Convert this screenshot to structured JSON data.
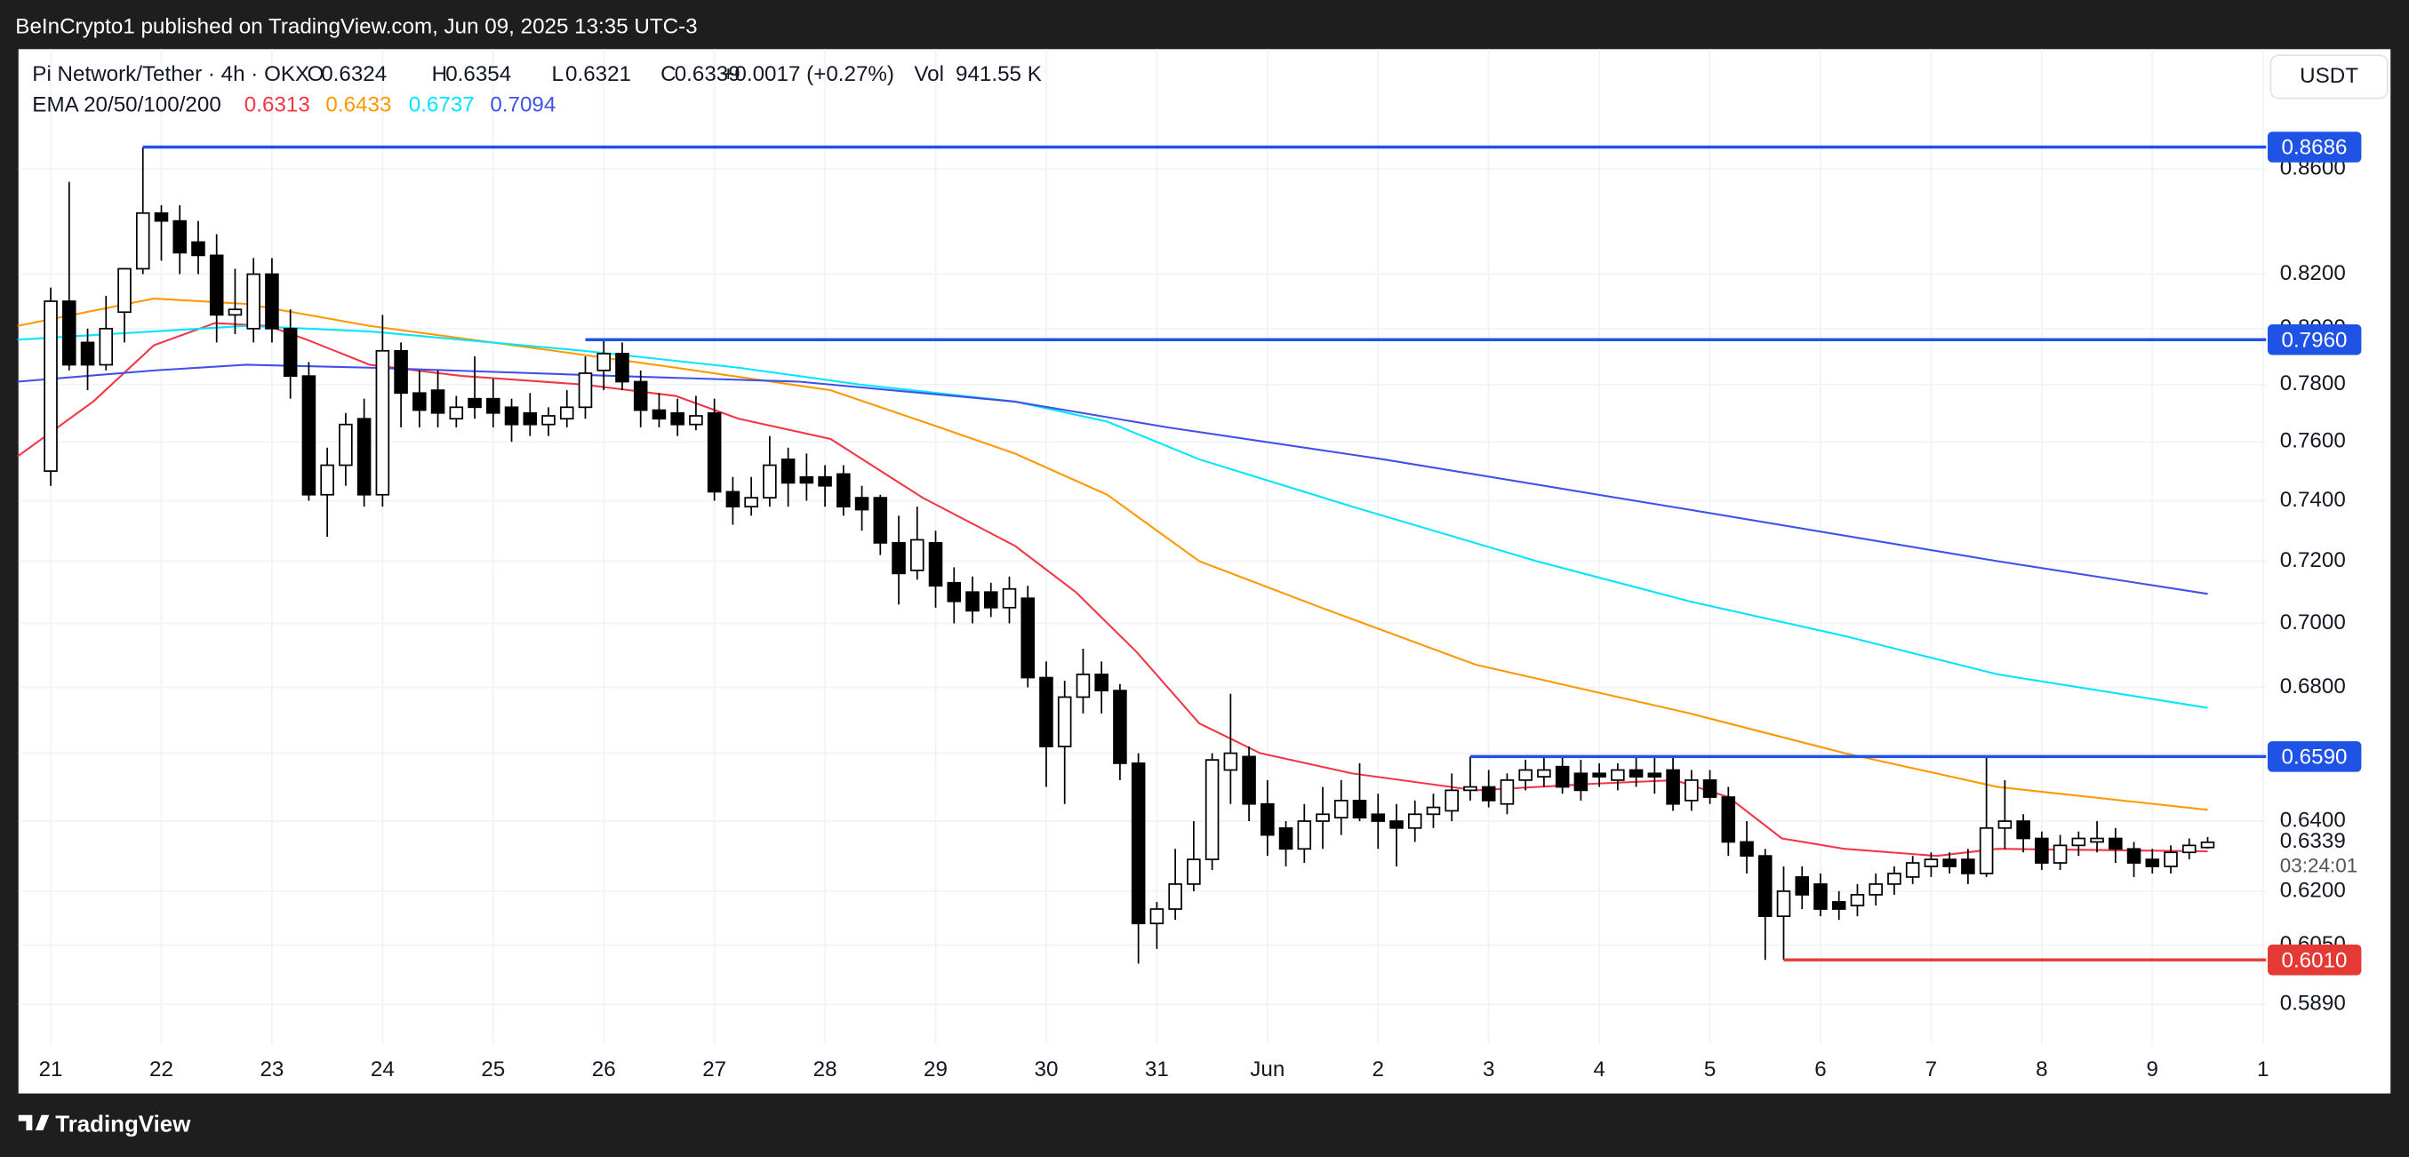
{
  "header": {
    "published": "BeInCrypto1 published on TradingView.com, Jun 09, 2025 13:35 UTC-3",
    "symbol": "Pi Network/Tether · 4h · OKX",
    "ohlc": [
      {
        "key": "O",
        "value": "0.6324"
      },
      {
        "key": "H",
        "value": "0.6354"
      },
      {
        "key": "L",
        "value": "0.6321"
      },
      {
        "key": "C",
        "value": "0.6339"
      }
    ],
    "change": "+0.0017 (+0.27%)",
    "volume": {
      "key": "Vol",
      "value": "941.55 K"
    },
    "ema_legend": "EMA 20/50/100/200",
    "currency": "USDT"
  },
  "footer": {
    "brand": "TradingView"
  },
  "chart_data": {
    "type": "candlestick",
    "log_scale": true,
    "grid": true,
    "up_color": "#ffffff",
    "down_color": "#000000",
    "wick_color": "#000000",
    "xlim": [
      -1.75,
      120.17
    ],
    "ylim": [
      0.5657,
      0.908
    ],
    "xticks": [
      {
        "value": 0,
        "label": "21"
      },
      {
        "value": 6,
        "label": "22"
      },
      {
        "value": 12,
        "label": "23"
      },
      {
        "value": 18,
        "label": "24"
      },
      {
        "value": 24,
        "label": "25"
      },
      {
        "value": 30,
        "label": "26"
      },
      {
        "value": 36,
        "label": "27"
      },
      {
        "value": 42,
        "label": "28"
      },
      {
        "value": 48,
        "label": "29"
      },
      {
        "value": 54,
        "label": "30"
      },
      {
        "value": 60,
        "label": "31"
      },
      {
        "value": 66,
        "label": "Jun"
      },
      {
        "value": 72,
        "label": "2"
      },
      {
        "value": 78,
        "label": "3"
      },
      {
        "value": 84,
        "label": "4"
      },
      {
        "value": 90,
        "label": "5"
      },
      {
        "value": 96,
        "label": "6"
      },
      {
        "value": 102,
        "label": "7"
      },
      {
        "value": 108,
        "label": "8"
      },
      {
        "value": 114,
        "label": "9"
      },
      {
        "value": 120,
        "label": "1"
      }
    ],
    "yticks": [
      {
        "value": 0.589,
        "label": "0.5890"
      },
      {
        "value": 0.605,
        "label": "0.6050"
      },
      {
        "value": 0.62,
        "label": "0.6200"
      },
      {
        "value": 0.64,
        "label": "0.6400"
      },
      {
        "value": 0.66,
        "label": "0.6600"
      },
      {
        "value": 0.68,
        "label": "0.6800"
      },
      {
        "value": 0.7,
        "label": "0.7000"
      },
      {
        "value": 0.72,
        "label": "0.7200"
      },
      {
        "value": 0.74,
        "label": "0.7400"
      },
      {
        "value": 0.76,
        "label": "0.7600"
      },
      {
        "value": 0.78,
        "label": "0.7800"
      },
      {
        "value": 0.8,
        "label": "0.8000"
      },
      {
        "value": 0.82,
        "label": "0.8200"
      },
      {
        "value": 0.86,
        "label": "0.8600"
      }
    ],
    "candles": [
      [
        0.75,
        0.815,
        0.745,
        0.81
      ],
      [
        0.81,
        0.855,
        0.785,
        0.787
      ],
      [
        0.795,
        0.8,
        0.778,
        0.787
      ],
      [
        0.787,
        0.812,
        0.785,
        0.8
      ],
      [
        0.806,
        0.822,
        0.795,
        0.822
      ],
      [
        0.822,
        0.8686,
        0.82,
        0.843
      ],
      [
        0.843,
        0.846,
        0.825,
        0.84
      ],
      [
        0.84,
        0.846,
        0.82,
        0.828
      ],
      [
        0.832,
        0.84,
        0.82,
        0.827
      ],
      [
        0.827,
        0.835,
        0.795,
        0.805
      ],
      [
        0.805,
        0.822,
        0.798,
        0.807
      ],
      [
        0.8,
        0.826,
        0.795,
        0.82
      ],
      [
        0.82,
        0.826,
        0.795,
        0.8
      ],
      [
        0.8,
        0.807,
        0.775,
        0.783
      ],
      [
        0.783,
        0.788,
        0.74,
        0.742
      ],
      [
        0.742,
        0.758,
        0.728,
        0.752
      ],
      [
        0.752,
        0.77,
        0.745,
        0.766
      ],
      [
        0.768,
        0.775,
        0.738,
        0.742
      ],
      [
        0.742,
        0.805,
        0.738,
        0.792
      ],
      [
        0.792,
        0.795,
        0.765,
        0.777
      ],
      [
        0.777,
        0.785,
        0.765,
        0.771
      ],
      [
        0.778,
        0.785,
        0.765,
        0.77
      ],
      [
        0.768,
        0.776,
        0.765,
        0.772
      ],
      [
        0.775,
        0.79,
        0.768,
        0.772
      ],
      [
        0.775,
        0.782,
        0.765,
        0.77
      ],
      [
        0.772,
        0.775,
        0.76,
        0.766
      ],
      [
        0.77,
        0.777,
        0.762,
        0.766
      ],
      [
        0.766,
        0.772,
        0.762,
        0.769
      ],
      [
        0.768,
        0.778,
        0.765,
        0.772
      ],
      [
        0.772,
        0.79,
        0.768,
        0.784
      ],
      [
        0.785,
        0.796,
        0.778,
        0.791
      ],
      [
        0.791,
        0.795,
        0.778,
        0.781
      ],
      [
        0.781,
        0.785,
        0.765,
        0.771
      ],
      [
        0.771,
        0.777,
        0.765,
        0.768
      ],
      [
        0.77,
        0.775,
        0.762,
        0.766
      ],
      [
        0.766,
        0.776,
        0.764,
        0.769
      ],
      [
        0.77,
        0.775,
        0.74,
        0.743
      ],
      [
        0.743,
        0.748,
        0.732,
        0.738
      ],
      [
        0.738,
        0.748,
        0.735,
        0.741
      ],
      [
        0.741,
        0.762,
        0.738,
        0.752
      ],
      [
        0.754,
        0.758,
        0.738,
        0.746
      ],
      [
        0.748,
        0.756,
        0.74,
        0.746
      ],
      [
        0.748,
        0.752,
        0.738,
        0.745
      ],
      [
        0.749,
        0.752,
        0.735,
        0.738
      ],
      [
        0.741,
        0.745,
        0.73,
        0.737
      ],
      [
        0.741,
        0.742,
        0.722,
        0.726
      ],
      [
        0.726,
        0.735,
        0.706,
        0.716
      ],
      [
        0.717,
        0.738,
        0.714,
        0.727
      ],
      [
        0.726,
        0.73,
        0.705,
        0.712
      ],
      [
        0.713,
        0.718,
        0.7,
        0.707
      ],
      [
        0.71,
        0.715,
        0.7,
        0.704
      ],
      [
        0.71,
        0.713,
        0.702,
        0.705
      ],
      [
        0.705,
        0.715,
        0.7,
        0.711
      ],
      [
        0.708,
        0.712,
        0.68,
        0.683
      ],
      [
        0.683,
        0.688,
        0.65,
        0.662
      ],
      [
        0.662,
        0.682,
        0.645,
        0.677
      ],
      [
        0.677,
        0.692,
        0.672,
        0.684
      ],
      [
        0.684,
        0.688,
        0.672,
        0.679
      ],
      [
        0.679,
        0.681,
        0.652,
        0.657
      ],
      [
        0.657,
        0.66,
        0.6,
        0.611
      ],
      [
        0.611,
        0.617,
        0.604,
        0.615
      ],
      [
        0.615,
        0.632,
        0.612,
        0.622
      ],
      [
        0.622,
        0.64,
        0.62,
        0.629
      ],
      [
        0.629,
        0.66,
        0.626,
        0.658
      ],
      [
        0.655,
        0.678,
        0.645,
        0.66
      ],
      [
        0.659,
        0.662,
        0.64,
        0.645
      ],
      [
        0.645,
        0.652,
        0.63,
        0.636
      ],
      [
        0.638,
        0.64,
        0.627,
        0.632
      ],
      [
        0.632,
        0.645,
        0.628,
        0.64
      ],
      [
        0.64,
        0.65,
        0.632,
        0.642
      ],
      [
        0.641,
        0.652,
        0.636,
        0.646
      ],
      [
        0.646,
        0.657,
        0.64,
        0.641
      ],
      [
        0.642,
        0.648,
        0.632,
        0.64
      ],
      [
        0.64,
        0.645,
        0.627,
        0.638
      ],
      [
        0.638,
        0.646,
        0.634,
        0.642
      ],
      [
        0.642,
        0.648,
        0.638,
        0.644
      ],
      [
        0.643,
        0.654,
        0.64,
        0.649
      ],
      [
        0.649,
        0.659,
        0.646,
        0.65
      ],
      [
        0.65,
        0.655,
        0.644,
        0.646
      ],
      [
        0.645,
        0.654,
        0.642,
        0.652
      ],
      [
        0.652,
        0.658,
        0.649,
        0.655
      ],
      [
        0.653,
        0.659,
        0.65,
        0.655
      ],
      [
        0.656,
        0.659,
        0.648,
        0.65
      ],
      [
        0.654,
        0.658,
        0.646,
        0.649
      ],
      [
        0.654,
        0.657,
        0.65,
        0.653
      ],
      [
        0.652,
        0.657,
        0.649,
        0.655
      ],
      [
        0.655,
        0.659,
        0.65,
        0.653
      ],
      [
        0.654,
        0.659,
        0.648,
        0.653
      ],
      [
        0.655,
        0.659,
        0.643,
        0.645
      ],
      [
        0.646,
        0.655,
        0.643,
        0.652
      ],
      [
        0.652,
        0.655,
        0.645,
        0.647
      ],
      [
        0.647,
        0.65,
        0.63,
        0.634
      ],
      [
        0.634,
        0.64,
        0.625,
        0.63
      ],
      [
        0.63,
        0.632,
        0.601,
        0.613
      ],
      [
        0.613,
        0.627,
        0.601,
        0.62
      ],
      [
        0.624,
        0.627,
        0.615,
        0.619
      ],
      [
        0.622,
        0.625,
        0.613,
        0.615
      ],
      [
        0.617,
        0.62,
        0.612,
        0.615
      ],
      [
        0.616,
        0.622,
        0.613,
        0.619
      ],
      [
        0.619,
        0.625,
        0.616,
        0.622
      ],
      [
        0.622,
        0.627,
        0.619,
        0.625
      ],
      [
        0.624,
        0.63,
        0.622,
        0.628
      ],
      [
        0.627,
        0.631,
        0.624,
        0.629
      ],
      [
        0.629,
        0.631,
        0.625,
        0.627
      ],
      [
        0.629,
        0.632,
        0.622,
        0.625
      ],
      [
        0.625,
        0.659,
        0.624,
        0.638
      ],
      [
        0.638,
        0.652,
        0.632,
        0.64
      ],
      [
        0.64,
        0.642,
        0.631,
        0.635
      ],
      [
        0.635,
        0.637,
        0.626,
        0.628
      ],
      [
        0.628,
        0.636,
        0.626,
        0.633
      ],
      [
        0.633,
        0.637,
        0.63,
        0.635
      ],
      [
        0.634,
        0.64,
        0.631,
        0.635
      ],
      [
        0.635,
        0.638,
        0.628,
        0.632
      ],
      [
        0.632,
        0.634,
        0.624,
        0.628
      ],
      [
        0.629,
        0.632,
        0.625,
        0.627
      ],
      [
        0.627,
        0.633,
        0.625,
        0.631
      ],
      [
        0.631,
        0.635,
        0.629,
        0.633
      ],
      [
        0.6324,
        0.6354,
        0.6321,
        0.6339
      ]
    ],
    "series": [
      {
        "color": "#f23645",
        "value_label": "0.6313",
        "x": [
          -1.8,
          2.3,
          5.6,
          8.9,
          11.8,
          13.9,
          17.3,
          22.3,
          28.9,
          33.9,
          37.3,
          42.3,
          47.3,
          52.3,
          55.6,
          58.9,
          62.3,
          65.6,
          70.6,
          77.3,
          83.9,
          88.1,
          91,
          93.9,
          97.3,
          102.3,
          105.6,
          117
        ],
        "values": [
          0.755,
          0.774,
          0.794,
          0.802,
          0.801,
          0.796,
          0.787,
          0.783,
          0.78,
          0.776,
          0.768,
          0.761,
          0.741,
          0.725,
          0.71,
          0.691,
          0.669,
          0.66,
          0.654,
          0.649,
          0.651,
          0.652,
          0.647,
          0.635,
          0.632,
          0.63,
          0.632,
          0.6313
        ]
      },
      {
        "color": "#ff9800",
        "value_label": "0.6433",
        "x": [
          -1.8,
          5.6,
          10.6,
          17.3,
          27.3,
          33.9,
          42.3,
          47.3,
          52.3,
          57.3,
          62.3,
          68.9,
          77.3,
          88.9,
          97.3,
          105.6,
          117
        ],
        "values": [
          0.801,
          0.811,
          0.809,
          0.801,
          0.792,
          0.786,
          0.778,
          0.767,
          0.756,
          0.742,
          0.72,
          0.705,
          0.687,
          0.672,
          0.66,
          0.65,
          0.6433
        ]
      },
      {
        "color": "#00e5ff",
        "value_label": "0.6737",
        "x": [
          -1.8,
          5.6,
          10.6,
          17.3,
          28.9,
          37.3,
          43.9,
          52.3,
          57.3,
          62.3,
          70.6,
          80.6,
          88.9,
          97.3,
          105.6,
          117
        ],
        "values": [
          0.796,
          0.799,
          0.801,
          0.799,
          0.792,
          0.786,
          0.78,
          0.774,
          0.767,
          0.754,
          0.738,
          0.72,
          0.707,
          0.696,
          0.684,
          0.6737
        ]
      },
      {
        "color": "#3f51e8",
        "value_label": "0.7094",
        "x": [
          -1.8,
          5.6,
          10.6,
          17.3,
          30.6,
          40.6,
          52.3,
          60.6,
          72.3,
          88.9,
          105.6,
          117
        ],
        "values": [
          0.781,
          0.785,
          0.787,
          0.786,
          0.783,
          0.781,
          0.774,
          0.765,
          0.754,
          0.737,
          0.72,
          0.7094
        ]
      }
    ],
    "levels": [
      {
        "value": 0.8686,
        "label": "0.8686",
        "start": 5,
        "color": "#1e53e5"
      },
      {
        "value": 0.796,
        "label": "0.7960",
        "start": 29,
        "color": "#1e53e5"
      },
      {
        "value": 0.659,
        "label": "0.6590",
        "start": 77,
        "color": "#1e53e5"
      },
      {
        "value": 0.601,
        "label": "0.6010",
        "start": 94,
        "color": "#e53935"
      }
    ],
    "last_price": {
      "value": 0.6339,
      "label": "0.6339"
    },
    "countdown": "03:24:01"
  }
}
